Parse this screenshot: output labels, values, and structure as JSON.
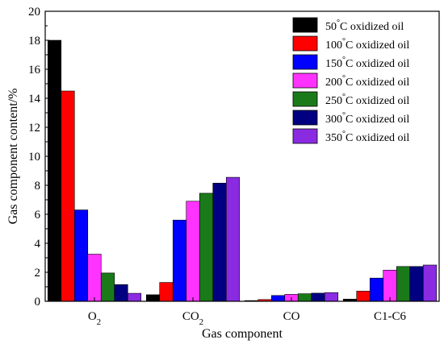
{
  "chart_data": {
    "type": "bar",
    "xlabel": "Gas component",
    "ylabel": "Gas component content/%",
    "ylim": [
      0,
      20
    ],
    "yticks": [
      0,
      2,
      4,
      6,
      8,
      10,
      12,
      14,
      16,
      18,
      20
    ],
    "categories": [
      "O2",
      "CO2",
      "CO",
      "C1-C6"
    ],
    "legend_position": "top-right",
    "series": [
      {
        "name": "50°C oxidized oil",
        "color": "#000000",
        "values": [
          18.0,
          0.45,
          0.05,
          0.15
        ]
      },
      {
        "name": "100°C oxidized oil",
        "color": "#ff0000",
        "values": [
          14.5,
          1.3,
          0.12,
          0.7
        ]
      },
      {
        "name": "150°C oxidized oil",
        "color": "#0000ff",
        "values": [
          6.3,
          5.6,
          0.4,
          1.6
        ]
      },
      {
        "name": "200°C oxidized oil",
        "color": "#ff33ff",
        "values": [
          3.25,
          6.9,
          0.48,
          2.15
        ]
      },
      {
        "name": "250°C oxidized oil",
        "color": "#1a7a1a",
        "values": [
          1.95,
          7.45,
          0.52,
          2.4
        ]
      },
      {
        "name": "300°C oxidized oil",
        "color": "#000080",
        "values": [
          1.15,
          8.15,
          0.56,
          2.4
        ]
      },
      {
        "name": "350°C oxidized oil",
        "color": "#8a2be2",
        "values": [
          0.55,
          8.55,
          0.6,
          2.5
        ]
      }
    ]
  }
}
